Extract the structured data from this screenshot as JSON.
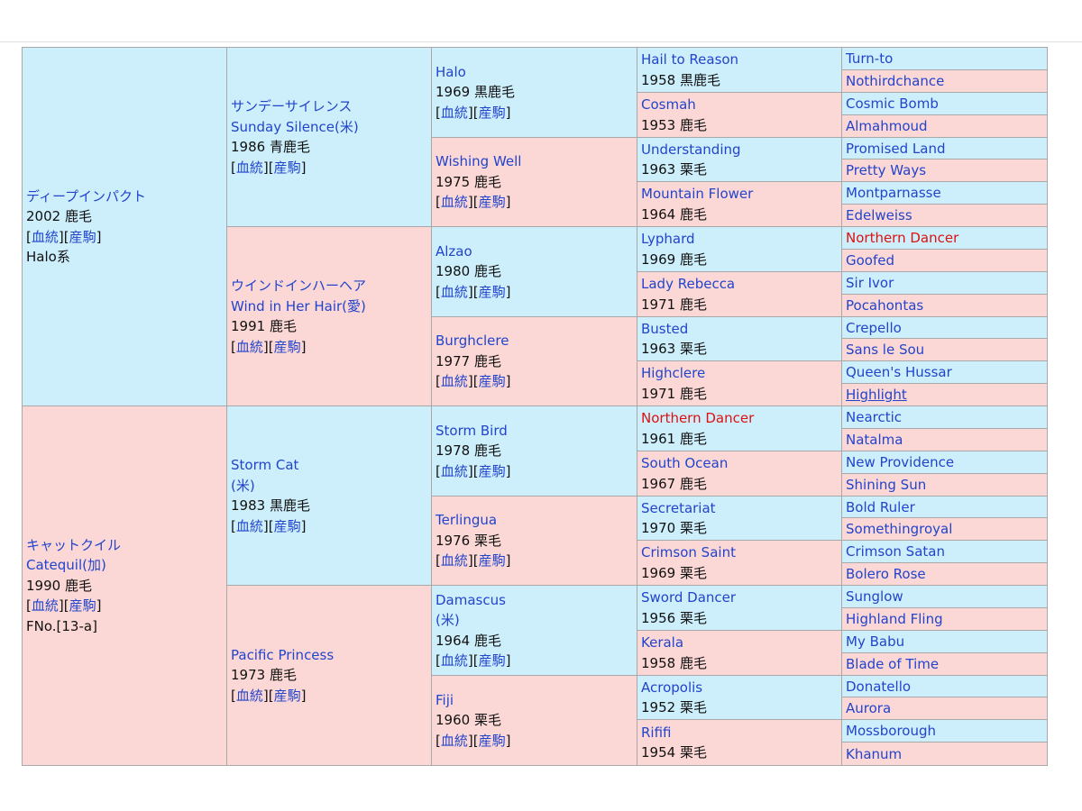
{
  "links": {
    "bloodline": "血統",
    "offspring": "産駒"
  },
  "colors": {
    "male_bg": "#cdeffb",
    "female_bg": "#fbd8d5",
    "link": "#2244cc",
    "inbreed": "#dd1111"
  },
  "pedigree": {
    "g1": [
      {
        "lines": [
          "ディープインパクト"
        ],
        "info": "2002 鹿毛",
        "links": true,
        "extra": [
          "Halo系"
        ],
        "sex": "m"
      },
      {
        "lines": [
          "キャットクイル",
          "Catequil(加)"
        ],
        "info": "1990 鹿毛",
        "links": true,
        "extra": [
          "FNo.[13-a]"
        ],
        "sex": "f"
      }
    ],
    "g2": [
      {
        "lines": [
          "サンデーサイレンス",
          "Sunday Silence(米)"
        ],
        "info": "1986 青鹿毛",
        "links": true,
        "sex": "m"
      },
      {
        "lines": [
          "ウインドインハーヘア",
          "Wind in Her Hair(愛)"
        ],
        "info": "1991 鹿毛",
        "links": true,
        "sex": "f"
      },
      {
        "lines": [
          "Storm Cat",
          "(米)"
        ],
        "info": "1983 黒鹿毛",
        "links": true,
        "sex": "m"
      },
      {
        "lines": [
          "Pacific Princess"
        ],
        "info": "1973 鹿毛",
        "links": true,
        "sex": "f"
      }
    ],
    "g3": [
      {
        "lines": [
          "Halo"
        ],
        "info": "1969 黒鹿毛",
        "links": true,
        "sex": "m"
      },
      {
        "lines": [
          "Wishing Well"
        ],
        "info": "1975 鹿毛",
        "links": true,
        "sex": "f"
      },
      {
        "lines": [
          "Alzao"
        ],
        "info": "1980 鹿毛",
        "links": true,
        "sex": "m"
      },
      {
        "lines": [
          "Burghclere"
        ],
        "info": "1977 鹿毛",
        "links": true,
        "sex": "f"
      },
      {
        "lines": [
          "Storm Bird"
        ],
        "info": "1978 鹿毛",
        "links": true,
        "sex": "m"
      },
      {
        "lines": [
          "Terlingua"
        ],
        "info": "1976 栗毛",
        "links": true,
        "sex": "f"
      },
      {
        "lines": [
          "Damascus",
          "(米)"
        ],
        "info": "1964 鹿毛",
        "links": true,
        "sex": "m"
      },
      {
        "lines": [
          "Fiji"
        ],
        "info": "1960 栗毛",
        "links": true,
        "sex": "f"
      }
    ],
    "g4": [
      {
        "lines": [
          "Hail to Reason"
        ],
        "info": "1958 黒鹿毛",
        "sex": "m"
      },
      {
        "lines": [
          "Cosmah"
        ],
        "info": "1953 鹿毛",
        "sex": "f"
      },
      {
        "lines": [
          "Understanding"
        ],
        "info": "1963 栗毛",
        "sex": "m"
      },
      {
        "lines": [
          "Mountain Flower"
        ],
        "info": "1964 鹿毛",
        "sex": "f"
      },
      {
        "lines": [
          "Lyphard"
        ],
        "info": "1969 鹿毛",
        "sex": "m"
      },
      {
        "lines": [
          "Lady Rebecca"
        ],
        "info": "1971 鹿毛",
        "sex": "f"
      },
      {
        "lines": [
          "Busted"
        ],
        "info": "1963 栗毛",
        "sex": "m"
      },
      {
        "lines": [
          "Highclere"
        ],
        "info": "1971 鹿毛",
        "sex": "f"
      },
      {
        "lines": [
          "Northern Dancer"
        ],
        "info": "1961 鹿毛",
        "sex": "m",
        "red": true
      },
      {
        "lines": [
          "South Ocean"
        ],
        "info": "1967 鹿毛",
        "sex": "f"
      },
      {
        "lines": [
          "Secretariat"
        ],
        "info": "1970 栗毛",
        "sex": "m"
      },
      {
        "lines": [
          "Crimson Saint"
        ],
        "info": "1969 栗毛",
        "sex": "f"
      },
      {
        "lines": [
          "Sword Dancer"
        ],
        "info": "1956 栗毛",
        "sex": "m"
      },
      {
        "lines": [
          "Kerala"
        ],
        "info": "1958 鹿毛",
        "sex": "f"
      },
      {
        "lines": [
          "Acropolis"
        ],
        "info": "1952 栗毛",
        "sex": "m"
      },
      {
        "lines": [
          "Rififi"
        ],
        "info": "1954 栗毛",
        "sex": "f"
      }
    ],
    "g5": [
      {
        "lines": [
          "Turn-to"
        ],
        "sex": "m"
      },
      {
        "lines": [
          "Nothirdchance"
        ],
        "sex": "f"
      },
      {
        "lines": [
          "Cosmic Bomb"
        ],
        "sex": "m"
      },
      {
        "lines": [
          "Almahmoud"
        ],
        "sex": "f"
      },
      {
        "lines": [
          "Promised Land"
        ],
        "sex": "m"
      },
      {
        "lines": [
          "Pretty Ways"
        ],
        "sex": "f"
      },
      {
        "lines": [
          "Montparnasse"
        ],
        "sex": "m"
      },
      {
        "lines": [
          "Edelweiss"
        ],
        "sex": "f"
      },
      {
        "lines": [
          "Northern Dancer"
        ],
        "sex": "m",
        "red": true
      },
      {
        "lines": [
          "Goofed"
        ],
        "sex": "f"
      },
      {
        "lines": [
          "Sir Ivor"
        ],
        "sex": "m"
      },
      {
        "lines": [
          "Pocahontas"
        ],
        "sex": "f"
      },
      {
        "lines": [
          "Crepello"
        ],
        "sex": "m"
      },
      {
        "lines": [
          "Sans le Sou"
        ],
        "sex": "f"
      },
      {
        "lines": [
          "Queen's Hussar"
        ],
        "sex": "m"
      },
      {
        "lines": [
          "Highlight"
        ],
        "sex": "f",
        "underline": true
      },
      {
        "lines": [
          "Nearctic"
        ],
        "sex": "m"
      },
      {
        "lines": [
          "Natalma"
        ],
        "sex": "f"
      },
      {
        "lines": [
          "New Providence"
        ],
        "sex": "m"
      },
      {
        "lines": [
          "Shining Sun"
        ],
        "sex": "f"
      },
      {
        "lines": [
          "Bold Ruler"
        ],
        "sex": "m"
      },
      {
        "lines": [
          "Somethingroyal"
        ],
        "sex": "f"
      },
      {
        "lines": [
          "Crimson Satan"
        ],
        "sex": "m"
      },
      {
        "lines": [
          "Bolero Rose"
        ],
        "sex": "f"
      },
      {
        "lines": [
          "Sunglow"
        ],
        "sex": "m"
      },
      {
        "lines": [
          "Highland Fling"
        ],
        "sex": "f"
      },
      {
        "lines": [
          "My Babu"
        ],
        "sex": "m"
      },
      {
        "lines": [
          "Blade of Time"
        ],
        "sex": "f"
      },
      {
        "lines": [
          "Donatello"
        ],
        "sex": "m"
      },
      {
        "lines": [
          "Aurora"
        ],
        "sex": "f"
      },
      {
        "lines": [
          "Mossborough"
        ],
        "sex": "m"
      },
      {
        "lines": [
          "Khanum"
        ],
        "sex": "f"
      }
    ]
  }
}
